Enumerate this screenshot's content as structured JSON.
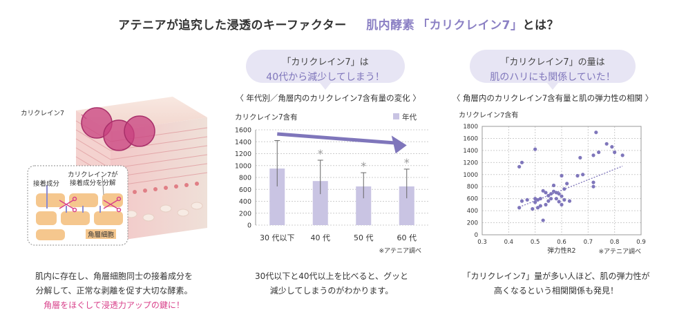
{
  "page": {
    "title_main": "アテニアが追究した浸透のキーファクター",
    "title_enzyme": "肌内酵素",
    "title_accent": "「カリクレイン7」",
    "title_tail": "とは？"
  },
  "left": {
    "label_kallikrein": "カリクレイン7",
    "label_adhesion": "接着成分",
    "label_decompose": "カリクレイン7が\n接着成分を分解",
    "label_corneocyte": "角層細胞",
    "caption_line1": "肌内に存在し、角層細胞同士の接着成分を",
    "caption_line2": "分解して、正常な剥離を促す大切な酵素。",
    "caption_line3": "角層をほぐして浸透力アップの鍵に！",
    "colors": {
      "pink": "#d8408a",
      "enzyme": "#c8407f"
    }
  },
  "middle": {
    "bubble_line1": "「カリクレイン7」は",
    "bubble_line2": "40代から減少してしまう！",
    "subtitle": "〈 年代別／角層内のカリクレイン7含有量の変化 〉",
    "source": "※アテニア調べ",
    "caption_line1": "30代以下と40代以上を比べると、グッと",
    "caption_line2": "減少してしまうのがわかります。"
  },
  "right": {
    "bubble_line1": "「カリクレイン7」の量は",
    "bubble_line2": "肌のハリにも関係していた！",
    "subtitle": "〈 角層内のカリクレイン7含有量と肌の弾力性の相関 〉",
    "source": "※アテニア調べ",
    "caption_line1": "「カリクレイン7」量が多い人ほど、肌の弾力性が",
    "caption_line2": "高くなるという相関関係も発見！"
  },
  "chart_data": [
    {
      "type": "bar",
      "ylabel": "カリクレイン7含有",
      "legend": "年代",
      "categories": [
        "30 代以下",
        "40 代",
        "50 代",
        "60 代"
      ],
      "values": [
        950,
        740,
        650,
        650
      ],
      "error_upper": [
        1420,
        1090,
        880,
        940
      ],
      "error_lower": [
        650,
        520,
        450,
        450
      ],
      "significance": [
        "",
        "*",
        "*",
        "*"
      ],
      "ylim": [
        0,
        1600
      ],
      "yticks": [
        0,
        200,
        400,
        600,
        800,
        1000,
        1200,
        1400,
        1600
      ],
      "trend_arrow": "down",
      "colors": {
        "bar": "#c9c4e3",
        "arrow": "#7f76bb"
      }
    },
    {
      "type": "scatter",
      "ylabel": "カリクレイン7含有",
      "xlabel": "弾力性R2",
      "xlim": [
        0.3,
        0.9
      ],
      "ylim": [
        0,
        1800
      ],
      "xticks": [
        0.3,
        0.4,
        0.5,
        0.6,
        0.7,
        0.8,
        0.9
      ],
      "yticks": [
        0,
        200,
        400,
        600,
        800,
        1000,
        1200,
        1400,
        1600,
        1800
      ],
      "points": [
        [
          0.44,
          1130
        ],
        [
          0.45,
          1200
        ],
        [
          0.44,
          450
        ],
        [
          0.45,
          560
        ],
        [
          0.47,
          580
        ],
        [
          0.49,
          430
        ],
        [
          0.5,
          540
        ],
        [
          0.5,
          600
        ],
        [
          0.5,
          1420
        ],
        [
          0.51,
          580
        ],
        [
          0.51,
          450
        ],
        [
          0.52,
          600
        ],
        [
          0.52,
          480
        ],
        [
          0.53,
          240
        ],
        [
          0.53,
          730
        ],
        [
          0.54,
          700
        ],
        [
          0.54,
          500
        ],
        [
          0.55,
          650
        ],
        [
          0.55,
          560
        ],
        [
          0.56,
          600
        ],
        [
          0.56,
          680
        ],
        [
          0.57,
          820
        ],
        [
          0.57,
          720
        ],
        [
          0.58,
          600
        ],
        [
          0.58,
          700
        ],
        [
          0.59,
          550
        ],
        [
          0.59,
          680
        ],
        [
          0.6,
          640
        ],
        [
          0.6,
          980
        ],
        [
          0.6,
          500
        ],
        [
          0.61,
          760
        ],
        [
          0.61,
          580
        ],
        [
          0.62,
          850
        ],
        [
          0.63,
          560
        ],
        [
          0.66,
          980
        ],
        [
          0.67,
          1280
        ],
        [
          0.68,
          1000
        ],
        [
          0.72,
          870
        ],
        [
          0.72,
          800
        ],
        [
          0.72,
          1320
        ],
        [
          0.73,
          1700
        ],
        [
          0.74,
          1370
        ],
        [
          0.77,
          1510
        ],
        [
          0.79,
          1460
        ],
        [
          0.8,
          1370
        ],
        [
          0.83,
          1320
        ]
      ],
      "trend_line": [
        [
          0.44,
          460
        ],
        [
          0.83,
          1140
        ]
      ],
      "colors": {
        "point": "#7f76bb",
        "line": "#7f76bb"
      }
    }
  ]
}
